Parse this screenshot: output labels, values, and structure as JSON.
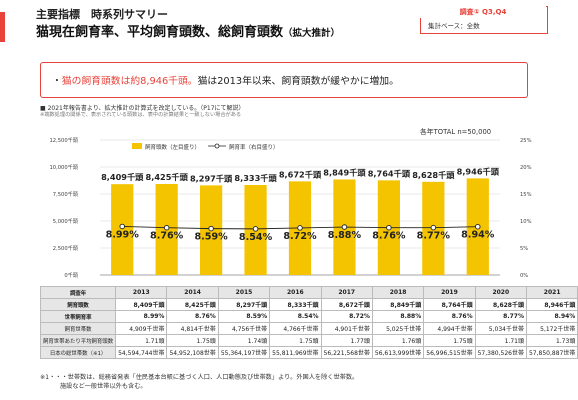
{
  "header": {
    "line1": "主要指標　時系列サマリー",
    "line2": "猫現在飼育率、平均飼育頭数、総飼育頭数",
    "line2_suffix": "（拡大推計）"
  },
  "tag": {
    "title": "調査① Q3,Q4",
    "base": "集計ベース：全数"
  },
  "callout": {
    "bullet": "・",
    "red_part": "猫の飼育頭数は約8,946千頭。",
    "rest": "猫は2013年以来、飼育頭数が緩やかに増加。"
  },
  "notes": {
    "n1": "■ 2021年報告書より、拡大推計の計算式を改定している。（P17にて解説）",
    "n2": "※端数処理の関係で、表示されている頭数は、表中の計算結果と一致しない場合がある"
  },
  "total_label": "各年TOTAL n=50,000",
  "chart_data": {
    "type": "bar",
    "categories": [
      "2013",
      "2014",
      "2015",
      "2016",
      "2017",
      "2018",
      "2019",
      "2020",
      "2021"
    ],
    "series": [
      {
        "name": "飼育頭数（左目盛り）",
        "kind": "bar",
        "color": "#f5c400",
        "values": [
          8409,
          8425,
          8297,
          8333,
          8672,
          8849,
          8764,
          8628,
          8946
        ],
        "labels": [
          "8,409千頭",
          "8,425千頭",
          "8,297千頭",
          "8,333千頭",
          "8,672千頭",
          "8,849千頭",
          "8,764千頭",
          "8,628千頭",
          "8,946千頭"
        ]
      },
      {
        "name": "飼育率（右目盛り）",
        "kind": "line",
        "color": "#222222",
        "values": [
          8.99,
          8.76,
          8.59,
          8.54,
          8.72,
          8.88,
          8.76,
          8.77,
          8.94
        ],
        "labels": [
          "8.99%",
          "8.76%",
          "8.59%",
          "8.54%",
          "8.72%",
          "8.88%",
          "8.76%",
          "8.77%",
          "8.94%"
        ]
      }
    ],
    "y_left": {
      "min": 0,
      "max": 12500,
      "ticks": [
        "12,500千頭",
        "10,000千頭",
        "7,500千頭",
        "5,000千頭",
        "2,500千頭",
        "0千頭"
      ],
      "tick_values": [
        12500,
        10000,
        7500,
        5000,
        2500,
        0
      ]
    },
    "y_right": {
      "min": 0,
      "max": 25,
      "ticks": [
        "25%",
        "20%",
        "15%",
        "10%",
        "5%",
        "0%"
      ],
      "tick_values": [
        25,
        20,
        15,
        10,
        5,
        0
      ]
    },
    "grid": true,
    "legend": "top-left"
  },
  "table": {
    "header_label": "調査年",
    "years": [
      "2013",
      "2014",
      "2015",
      "2016",
      "2017",
      "2018",
      "2019",
      "2020",
      "2021"
    ],
    "rows": [
      {
        "label": "飼育頭数",
        "bold": true,
        "cells": [
          "8,409千頭",
          "8,425千頭",
          "8,297千頭",
          "8,333千頭",
          "8,672千頭",
          "8,849千頭",
          "8,764千頭",
          "8,628千頭",
          "8,946千頭"
        ]
      },
      {
        "label": "世帯飼育率",
        "bold": true,
        "cells": [
          "8.99%",
          "8.76%",
          "8.59%",
          "8.54%",
          "8.72%",
          "8.88%",
          "8.76%",
          "8.77%",
          "8.94%"
        ]
      },
      {
        "label": "飼育世帯数",
        "bold": false,
        "cells": [
          "4,909千世帯",
          "4,814千世帯",
          "4,756千世帯",
          "4,766千世帯",
          "4,901千世帯",
          "5,025千世帯",
          "4,994千世帯",
          "5,034千世帯",
          "5,172千世帯"
        ]
      },
      {
        "label": "飼育世帯あたり平均飼育頭数",
        "bold": false,
        "cells": [
          "1.71頭",
          "1.75頭",
          "1.74頭",
          "1.75頭",
          "1.77頭",
          "1.76頭",
          "1.75頭",
          "1.71頭",
          "1.73頭"
        ]
      },
      {
        "label": "日本の総世帯数（※1）",
        "bold": false,
        "cells": [
          "54,594,744世帯",
          "54,952,108世帯",
          "55,364,197世帯",
          "55,811,969世帯",
          "56,221,568世帯",
          "56,613,999世帯",
          "56,996,515世帯",
          "57,380,526世帯",
          "57,850,887世帯"
        ]
      }
    ]
  },
  "footnote": {
    "f1": "※1・・・世帯数は、総務省発表「住民基本台帳に基づく人口、人口動態及び世帯数」より。外国人を除く世帯数。",
    "f2": "施設など一般世帯以外も含む。"
  }
}
